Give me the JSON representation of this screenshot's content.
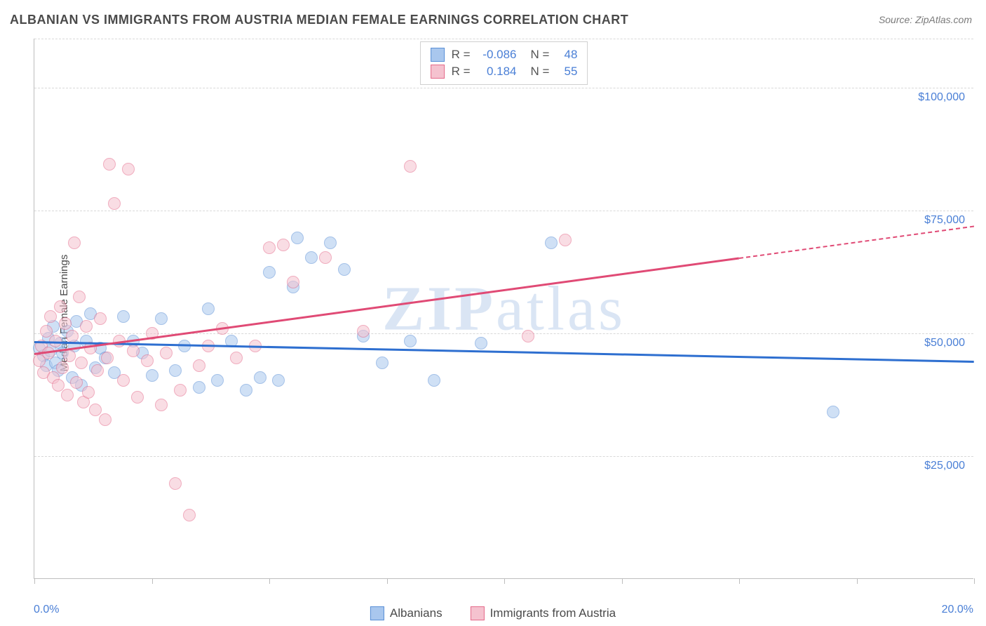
{
  "title": "ALBANIAN VS IMMIGRANTS FROM AUSTRIA MEDIAN FEMALE EARNINGS CORRELATION CHART",
  "source": "Source: ZipAtlas.com",
  "ylabel": "Median Female Earnings",
  "watermark_a": "ZIP",
  "watermark_b": "atlas",
  "chart": {
    "type": "scatter",
    "xlim": [
      0,
      20
    ],
    "ylim": [
      0,
      110000
    ],
    "xtick_positions": [
      0,
      2.5,
      5,
      7.5,
      10,
      12.5,
      15,
      17.5,
      20
    ],
    "xaxis_start_label": "0.0%",
    "xaxis_end_label": "20.0%",
    "ytick_positions": [
      25000,
      50000,
      75000,
      100000
    ],
    "ytick_labels": [
      "$25,000",
      "$50,000",
      "$75,000",
      "$100,000"
    ],
    "grid_color": "#d8d8d8",
    "axis_color": "#bdbdbd",
    "background_color": "#ffffff",
    "tick_label_color": "#4a7fd6",
    "marker_radius": 9,
    "marker_opacity": 0.55,
    "marker_stroke_width": 1.5,
    "series": [
      {
        "name": "Albanians",
        "fill": "#a9c7ee",
        "stroke": "#5a8fd6",
        "R": "-0.086",
        "N": "48",
        "regression": {
          "x1": 0,
          "y1": 48500,
          "x2": 20,
          "y2": 44500,
          "dashed_from_x": null,
          "color": "#2e6fd0",
          "width": 2.5
        },
        "points": [
          [
            0.1,
            47000
          ],
          [
            0.2,
            45500
          ],
          [
            0.25,
            43500
          ],
          [
            0.3,
            49000
          ],
          [
            0.35,
            46500
          ],
          [
            0.4,
            51500
          ],
          [
            0.45,
            44000
          ],
          [
            0.5,
            42500
          ],
          [
            0.55,
            48000
          ],
          [
            0.6,
            46000
          ],
          [
            0.7,
            50500
          ],
          [
            0.8,
            41000
          ],
          [
            0.85,
            47500
          ],
          [
            0.9,
            52500
          ],
          [
            1.0,
            39500
          ],
          [
            1.1,
            48500
          ],
          [
            1.2,
            54000
          ],
          [
            1.3,
            43000
          ],
          [
            1.4,
            47000
          ],
          [
            1.5,
            45000
          ],
          [
            1.7,
            42000
          ],
          [
            1.9,
            53500
          ],
          [
            2.1,
            48500
          ],
          [
            2.3,
            46000
          ],
          [
            2.5,
            41500
          ],
          [
            2.7,
            53000
          ],
          [
            3.0,
            42500
          ],
          [
            3.2,
            47500
          ],
          [
            3.5,
            39000
          ],
          [
            3.7,
            55000
          ],
          [
            3.9,
            40500
          ],
          [
            4.2,
            48500
          ],
          [
            4.5,
            38500
          ],
          [
            4.8,
            41000
          ],
          [
            5.0,
            62500
          ],
          [
            5.2,
            40500
          ],
          [
            5.5,
            59500
          ],
          [
            5.6,
            69500
          ],
          [
            5.9,
            65500
          ],
          [
            6.3,
            68500
          ],
          [
            6.6,
            63000
          ],
          [
            7.0,
            49500
          ],
          [
            7.4,
            44000
          ],
          [
            8.0,
            48500
          ],
          [
            8.5,
            40500
          ],
          [
            9.5,
            48000
          ],
          [
            11.0,
            68500
          ],
          [
            17.0,
            34000
          ]
        ]
      },
      {
        "name": "Immigrants from Austria",
        "fill": "#f5c2cf",
        "stroke": "#e46a8a",
        "R": "0.184",
        "N": "55",
        "regression": {
          "x1": 0,
          "y1": 46000,
          "x2": 20,
          "y2": 72000,
          "dashed_from_x": 15,
          "color": "#e04a75",
          "width": 2.5
        },
        "points": [
          [
            0.1,
            44500
          ],
          [
            0.15,
            47500
          ],
          [
            0.2,
            42000
          ],
          [
            0.25,
            50500
          ],
          [
            0.3,
            46000
          ],
          [
            0.35,
            53500
          ],
          [
            0.4,
            41000
          ],
          [
            0.45,
            48500
          ],
          [
            0.5,
            39500
          ],
          [
            0.55,
            55500
          ],
          [
            0.6,
            43000
          ],
          [
            0.65,
            52000
          ],
          [
            0.7,
            37500
          ],
          [
            0.75,
            45500
          ],
          [
            0.8,
            49500
          ],
          [
            0.85,
            68500
          ],
          [
            0.9,
            40000
          ],
          [
            0.95,
            57500
          ],
          [
            1.0,
            44000
          ],
          [
            1.05,
            36000
          ],
          [
            1.1,
            51500
          ],
          [
            1.15,
            38000
          ],
          [
            1.2,
            47000
          ],
          [
            1.3,
            34500
          ],
          [
            1.35,
            42500
          ],
          [
            1.4,
            53000
          ],
          [
            1.5,
            32500
          ],
          [
            1.55,
            45000
          ],
          [
            1.6,
            84500
          ],
          [
            1.7,
            76500
          ],
          [
            1.8,
            48500
          ],
          [
            1.9,
            40500
          ],
          [
            2.0,
            83500
          ],
          [
            2.1,
            46500
          ],
          [
            2.2,
            37000
          ],
          [
            2.4,
            44500
          ],
          [
            2.5,
            50000
          ],
          [
            2.7,
            35500
          ],
          [
            2.8,
            46000
          ],
          [
            3.0,
            19500
          ],
          [
            3.1,
            38500
          ],
          [
            3.3,
            13000
          ],
          [
            3.5,
            43500
          ],
          [
            3.7,
            47500
          ],
          [
            4.0,
            51000
          ],
          [
            4.3,
            45000
          ],
          [
            4.7,
            47500
          ],
          [
            5.0,
            67500
          ],
          [
            5.3,
            68000
          ],
          [
            5.5,
            60500
          ],
          [
            6.2,
            65500
          ],
          [
            7.0,
            50500
          ],
          [
            8.0,
            84000
          ],
          [
            10.5,
            49500
          ],
          [
            11.3,
            69000
          ]
        ]
      }
    ]
  },
  "legend_top": {
    "r_label": "R =",
    "n_label": "N ="
  },
  "legend_bottom": {
    "items": [
      "Albanians",
      "Immigrants from Austria"
    ]
  }
}
